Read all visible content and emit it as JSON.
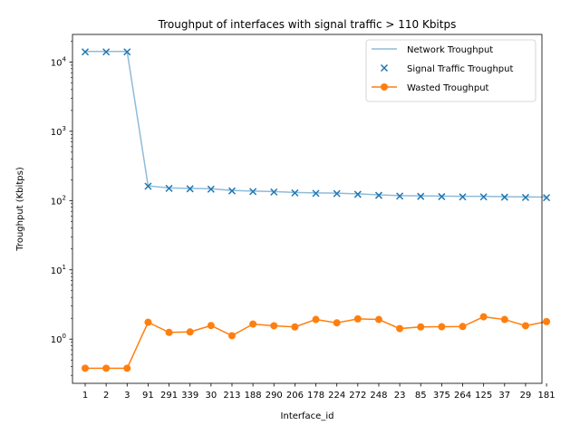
{
  "chart_data": {
    "type": "line",
    "title": "Troughput of interfaces with signal traffic > 110 Kbitps",
    "xlabel": "Interface_id",
    "ylabel": "Troughput (Kbitps)",
    "yscale": "log",
    "ylim": [
      0.23,
      25000
    ],
    "grid": false,
    "legend_position": "top-right",
    "categories": [
      "1",
      "2",
      "3",
      "91",
      "291",
      "339",
      "30",
      "213",
      "188",
      "290",
      "206",
      "178",
      "224",
      "272",
      "248",
      "23",
      "85",
      "375",
      "264",
      "125",
      "37",
      "29",
      "181"
    ],
    "yticks": [
      {
        "value": 1,
        "base": "10",
        "exp": "0"
      },
      {
        "value": 10,
        "base": "10",
        "exp": "1"
      },
      {
        "value": 100,
        "base": "10",
        "exp": "2"
      },
      {
        "value": 1000,
        "base": "10",
        "exp": "3"
      },
      {
        "value": 10000,
        "base": "10",
        "exp": "4"
      }
    ],
    "series": [
      {
        "name": "Network Troughput",
        "style": "line",
        "color": "#1f77b4",
        "opacity": 0.5,
        "values": [
          14200,
          14200,
          14200,
          163,
          152,
          150,
          148,
          140,
          137,
          135,
          131,
          129,
          128,
          125,
          121,
          118,
          117,
          116,
          115,
          115,
          114,
          113,
          112
        ]
      },
      {
        "name": "Signal Traffic Troughput",
        "style": "marker-x",
        "color": "#1f77b4",
        "values": [
          14000,
          14000,
          14000,
          161,
          150,
          148,
          146,
          138,
          135,
          133,
          129,
          127,
          126,
          123,
          119,
          116,
          115,
          114,
          113,
          113,
          112,
          111,
          110
        ]
      },
      {
        "name": "Wasted Troughput",
        "style": "line-marker-o",
        "color": "#ff7f0e",
        "values": [
          0.38,
          0.38,
          0.38,
          1.75,
          1.25,
          1.27,
          1.57,
          1.12,
          1.65,
          1.56,
          1.5,
          1.92,
          1.72,
          1.96,
          1.92,
          1.42,
          1.5,
          1.51,
          1.52,
          2.1,
          1.92,
          1.56,
          1.79
        ]
      }
    ]
  }
}
